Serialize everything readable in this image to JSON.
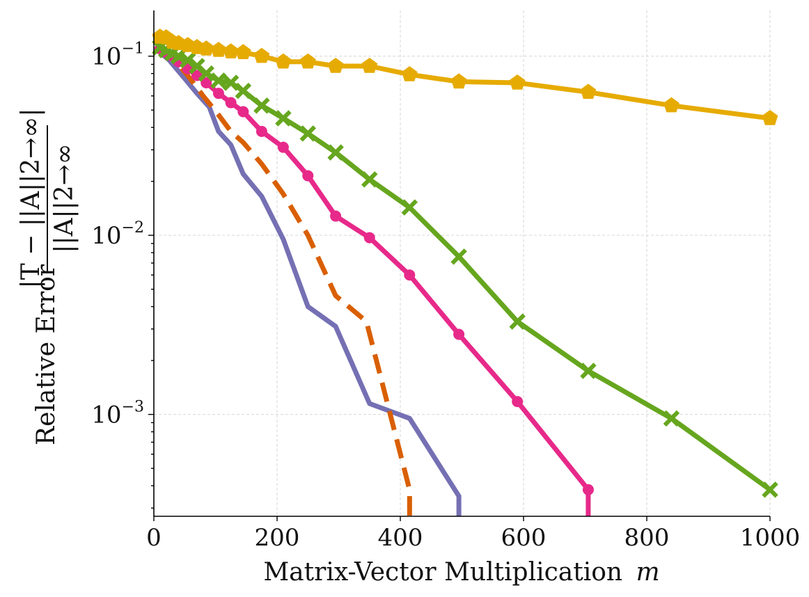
{
  "chart_data": {
    "type": "line",
    "title": "",
    "xlabel": "Matrix-Vector Multiplication",
    "xlabel_var": "m",
    "ylabel_prefix": "Relative Error",
    "ylabel_numerator": "|T − ||A||2→∞|",
    "ylabel_denominator": "||A||2→∞",
    "xlim": [
      0,
      1000
    ],
    "ylim": [
      0.00027,
      0.18
    ],
    "yscale": "log",
    "grid": true,
    "xticks": [
      0,
      200,
      400,
      600,
      800,
      1000
    ],
    "xtick_labels": [
      "0",
      "200",
      "400",
      "600",
      "800",
      "1000"
    ],
    "yticks": [
      0.1,
      0.01,
      0.001
    ],
    "ytick_base": [
      "10",
      "10",
      "10"
    ],
    "ytick_exp": [
      "−1",
      "−2",
      "−3"
    ],
    "series": [
      {
        "name": "series-purple",
        "color": "#7570b3",
        "style": "solid",
        "marker": "none",
        "x": [
          10,
          25,
          50,
          70,
          90,
          105,
          125,
          145,
          175,
          210,
          250,
          295,
          350,
          415,
          495,
          495
        ],
        "y": [
          0.105,
          0.095,
          0.075,
          0.062,
          0.052,
          0.038,
          0.032,
          0.022,
          0.0165,
          0.0095,
          0.004,
          0.0031,
          0.00115,
          0.00095,
          0.00035,
          0.00027
        ]
      },
      {
        "name": "series-orange-dashed",
        "color": "#d95f02",
        "style": "dashed",
        "marker": "none",
        "x": [
          10,
          30,
          55,
          80,
          105,
          125,
          145,
          175,
          210,
          250,
          295,
          345,
          415,
          415
        ],
        "y": [
          0.11,
          0.098,
          0.078,
          0.06,
          0.047,
          0.038,
          0.033,
          0.025,
          0.017,
          0.01,
          0.0046,
          0.0033,
          0.00038,
          0.00027
        ]
      },
      {
        "name": "series-pink",
        "color": "#e7298a",
        "style": "solid",
        "marker": "circle",
        "x": [
          10,
          20,
          30,
          40,
          55,
          70,
          85,
          105,
          125,
          145,
          175,
          210,
          250,
          295,
          350,
          415,
          495,
          590,
          705,
          705
        ],
        "y": [
          0.11,
          0.105,
          0.1,
          0.093,
          0.085,
          0.078,
          0.071,
          0.062,
          0.055,
          0.049,
          0.038,
          0.031,
          0.0215,
          0.0128,
          0.0097,
          0.006,
          0.0028,
          0.00118,
          0.00038,
          0.00027
        ]
      },
      {
        "name": "series-green",
        "color": "#66a61e",
        "style": "solid",
        "marker": "x",
        "x": [
          10,
          20,
          30,
          40,
          55,
          70,
          85,
          105,
          125,
          145,
          175,
          210,
          250,
          295,
          350,
          415,
          495,
          590,
          705,
          840,
          1000
        ],
        "y": [
          0.112,
          0.108,
          0.104,
          0.1,
          0.095,
          0.088,
          0.08,
          0.073,
          0.071,
          0.064,
          0.053,
          0.045,
          0.037,
          0.029,
          0.0205,
          0.0143,
          0.0076,
          0.0033,
          0.00175,
          0.00095,
          0.00038
        ]
      },
      {
        "name": "series-yellow",
        "color": "#e6ab02",
        "style": "solid",
        "marker": "pentagon",
        "x": [
          10,
          20,
          30,
          40,
          55,
          70,
          85,
          105,
          125,
          145,
          175,
          210,
          250,
          295,
          350,
          415,
          495,
          590,
          705,
          840,
          1000
        ],
        "y": [
          0.128,
          0.127,
          0.12,
          0.118,
          0.115,
          0.112,
          0.11,
          0.108,
          0.106,
          0.105,
          0.1,
          0.093,
          0.093,
          0.088,
          0.088,
          0.079,
          0.072,
          0.071,
          0.063,
          0.053,
          0.045
        ]
      }
    ]
  }
}
